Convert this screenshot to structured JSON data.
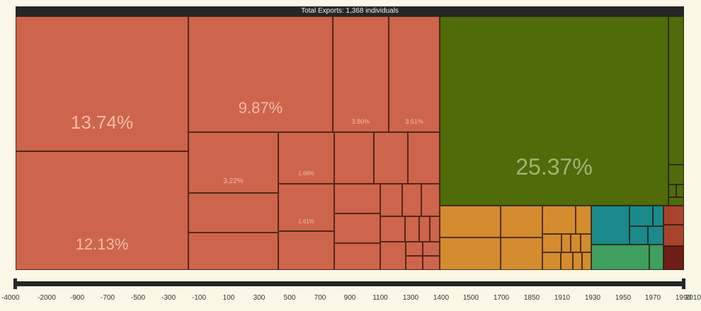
{
  "title": "Total Exports: 1,368 individuals",
  "colors": {
    "orange": "#cd654c",
    "green": "#4f6b0a",
    "amber": "#d48c2f",
    "teal": "#1a8a8a",
    "lightgreen": "#3f9f5f",
    "rust": "#a8432c",
    "darkred": "#6e1e16",
    "background": "#faf7e6",
    "bar": "#262626"
  },
  "chart_data": {
    "type": "treemap",
    "title": "Total Exports: 1,368 individuals",
    "timeline_ticks": [
      "-4000",
      "-2000",
      "-900",
      "-700",
      "-500",
      "-300",
      "-100",
      "100",
      "300",
      "500",
      "700",
      "900",
      "1100",
      "1300",
      "1400",
      "1500",
      "1700",
      "1850",
      "1910",
      "1930",
      "1950",
      "1970",
      "1990",
      "2010"
    ],
    "labeled_tiles": [
      {
        "id": "a1",
        "label": "13.74%",
        "value": 13.74,
        "color": "orange"
      },
      {
        "id": "a2",
        "label": "12.13%",
        "value": 12.13,
        "color": "orange"
      },
      {
        "id": "b1",
        "label": "9.87%",
        "value": 9.87,
        "color": "orange"
      },
      {
        "id": "b2",
        "label": "3.80%",
        "value": 3.8,
        "color": "orange"
      },
      {
        "id": "b3",
        "label": "3.51%",
        "value": 3.51,
        "color": "orange"
      },
      {
        "id": "c1",
        "label": "3.22%",
        "value": 3.22,
        "color": "orange"
      },
      {
        "id": "c4",
        "label": "1.68%",
        "value": 1.68,
        "color": "orange"
      },
      {
        "id": "c5",
        "label": "1.61%",
        "value": 1.61,
        "color": "orange"
      },
      {
        "id": "g1",
        "label": "25.37%",
        "value": 25.37,
        "color": "green"
      }
    ]
  }
}
